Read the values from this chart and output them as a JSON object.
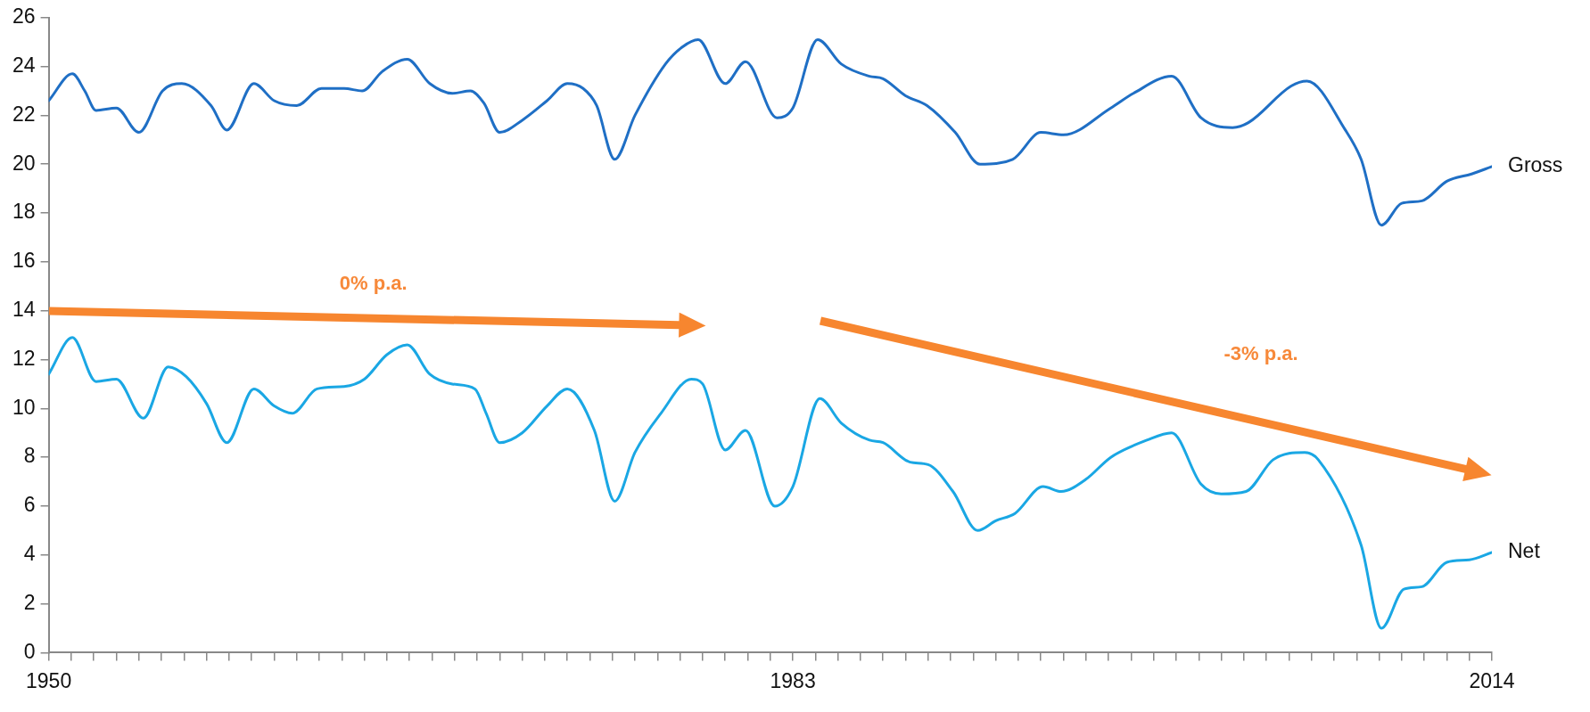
{
  "chart_data": {
    "type": "line",
    "xlim": [
      1950,
      2014
    ],
    "ylim": [
      0,
      26
    ],
    "yticks": [
      0,
      2,
      4,
      6,
      8,
      10,
      12,
      14,
      16,
      18,
      20,
      22,
      24,
      26
    ],
    "xticks": [
      1950,
      {
        "value": 1951,
        "label": null
      },
      {
        "value": 1952,
        "label": null
      },
      {
        "value": 1953,
        "label": null
      },
      {
        "value": 1954,
        "label": null
      },
      {
        "value": 1955,
        "label": null
      },
      {
        "value": 1956,
        "label": null
      },
      {
        "value": 1957,
        "label": null
      },
      {
        "value": 1958,
        "label": null
      },
      {
        "value": 1959,
        "label": null
      },
      {
        "value": 1960,
        "label": null
      },
      {
        "value": 1961,
        "label": null
      },
      {
        "value": 1962,
        "label": null
      },
      {
        "value": 1963,
        "label": null
      },
      {
        "value": 1964,
        "label": null
      },
      {
        "value": 1965,
        "label": null
      },
      {
        "value": 1966,
        "label": null
      },
      {
        "value": 1967,
        "label": null
      },
      {
        "value": 1968,
        "label": null
      },
      {
        "value": 1969,
        "label": null
      },
      {
        "value": 1970,
        "label": null
      },
      {
        "value": 1971,
        "label": null
      },
      {
        "value": 1972,
        "label": null
      },
      {
        "value": 1973,
        "label": null
      },
      {
        "value": 1974,
        "label": null
      },
      {
        "value": 1975,
        "label": null
      },
      {
        "value": 1976,
        "label": null
      },
      {
        "value": 1977,
        "label": null
      },
      {
        "value": 1978,
        "label": null
      },
      {
        "value": 1979,
        "label": null
      },
      {
        "value": 1980,
        "label": null
      },
      {
        "value": 1981,
        "label": null
      },
      {
        "value": 1982,
        "label": null
      },
      1983,
      {
        "value": 1984,
        "label": null
      },
      {
        "value": 1985,
        "label": null
      },
      {
        "value": 1986,
        "label": null
      },
      {
        "value": 1987,
        "label": null
      },
      {
        "value": 1988,
        "label": null
      },
      {
        "value": 1989,
        "label": null
      },
      {
        "value": 1990,
        "label": null
      },
      {
        "value": 1991,
        "label": null
      },
      {
        "value": 1992,
        "label": null
      },
      {
        "value": 1993,
        "label": null
      },
      {
        "value": 1994,
        "label": null
      },
      {
        "value": 1995,
        "label": null
      },
      {
        "value": 1996,
        "label": null
      },
      {
        "value": 1997,
        "label": null
      },
      {
        "value": 1998,
        "label": null
      },
      {
        "value": 1999,
        "label": null
      },
      {
        "value": 2000,
        "label": null
      },
      {
        "value": 2001,
        "label": null
      },
      {
        "value": 2002,
        "label": null
      },
      {
        "value": 2003,
        "label": null
      },
      {
        "value": 2004,
        "label": null
      },
      {
        "value": 2005,
        "label": null
      },
      {
        "value": 2006,
        "label": null
      },
      {
        "value": 2007,
        "label": null
      },
      {
        "value": 2008,
        "label": null
      },
      {
        "value": 2009,
        "label": null
      },
      {
        "value": 2010,
        "label": null
      },
      {
        "value": 2011,
        "label": null
      },
      {
        "value": 2012,
        "label": null
      },
      {
        "value": 2013,
        "label": null
      },
      2014
    ],
    "legend": false,
    "marker": "none",
    "line_style": "solid",
    "annotations": [
      "0% p.a.",
      "-3% p.a."
    ],
    "series": [
      {
        "name": "Gross",
        "color": "#1f6fc5",
        "x": [
          1950.0,
          1951.05,
          1951.6,
          1952.1,
          1953.0,
          1954.0,
          1955.05,
          1955.9,
          1957.2,
          1957.9,
          1959.1,
          1960.0,
          1961.0,
          1962.1,
          1963.1,
          1963.9,
          1964.8,
          1965.9,
          1966.9,
          1967.9,
          1968.7,
          1969.3,
          1970.0,
          1971.0,
          1972.1,
          1973.0,
          1973.7,
          1974.3,
          1975.1,
          1976.0,
          1977.35,
          1978.1,
          1978.8,
          1980.0,
          1980.9,
          1982.3,
          1983.0,
          1984.1,
          1985.15,
          1986.4,
          1987.0,
          1988.0,
          1988.95,
          1990.2,
          1991.3,
          1992.75,
          1994.0,
          1995.0,
          1997.1,
          1998.1,
          1999.8,
          2001.1,
          2002.5,
          2003.2,
          2005.1,
          2005.8,
          2007.5,
          2008.2,
          2009.1,
          2010.0,
          2010.9,
          2012.0,
          2013.1,
          2014.0
        ],
        "values": [
          22.6,
          23.7,
          23.0,
          22.2,
          22.3,
          21.3,
          23.0,
          23.3,
          22.4,
          21.4,
          23.3,
          22.6,
          22.4,
          23.1,
          23.1,
          23.0,
          23.8,
          24.3,
          23.3,
          22.9,
          23.0,
          22.5,
          21.3,
          21.8,
          22.6,
          23.3,
          23.1,
          22.4,
          20.2,
          22.0,
          24.1,
          24.8,
          25.1,
          23.3,
          24.2,
          21.9,
          22.3,
          25.1,
          24.1,
          23.6,
          23.5,
          22.8,
          22.4,
          21.3,
          20.0,
          20.2,
          21.3,
          21.2,
          22.3,
          22.9,
          23.6,
          21.9,
          21.5,
          21.7,
          23.2,
          23.4,
          21.4,
          20.2,
          17.5,
          18.4,
          18.5,
          19.3,
          19.6,
          19.9
        ]
      },
      {
        "name": "Net",
        "color": "#1aa7e4",
        "x": [
          1950.0,
          1951.05,
          1952.1,
          1953.0,
          1954.2,
          1955.3,
          1956.1,
          1957.0,
          1957.9,
          1959.1,
          1960.0,
          1960.8,
          1961.9,
          1963.1,
          1964.0,
          1965.0,
          1965.9,
          1966.9,
          1967.9,
          1968.9,
          1969.4,
          1970.0,
          1971.0,
          1972.1,
          1973.0,
          1974.2,
          1975.1,
          1976.0,
          1977.15,
          1978.5,
          1979.0,
          1980.0,
          1980.9,
          1982.2,
          1983.0,
          1984.2,
          1985.15,
          1986.4,
          1987.0,
          1988.2,
          1989.0,
          1990.1,
          1991.2,
          1992.0,
          1992.85,
          1994.1,
          1994.9,
          1996.0,
          1997.1,
          1998.7,
          1999.8,
          2001.1,
          2002.0,
          2003.1,
          2004.3,
          2005.7,
          2006.3,
          2008.2,
          2009.1,
          2010.1,
          2010.9,
          2012.0,
          2013.0,
          2014.0
        ],
        "values": [
          11.4,
          12.9,
          11.1,
          11.2,
          9.6,
          11.7,
          11.3,
          10.2,
          8.6,
          10.8,
          10.1,
          9.8,
          10.8,
          10.9,
          11.2,
          12.2,
          12.6,
          11.4,
          11.0,
          10.8,
          9.8,
          8.6,
          9.0,
          10.1,
          10.8,
          9.1,
          6.2,
          8.2,
          9.8,
          11.2,
          11.0,
          8.3,
          9.1,
          6.0,
          6.8,
          10.4,
          9.4,
          8.7,
          8.6,
          7.8,
          7.7,
          6.6,
          5.0,
          5.4,
          5.7,
          6.8,
          6.6,
          7.1,
          8.0,
          8.7,
          9.0,
          6.9,
          6.5,
          6.6,
          7.9,
          8.2,
          7.9,
          4.4,
          1.0,
          2.6,
          2.7,
          3.7,
          3.8,
          4.1
        ]
      }
    ]
  }
}
